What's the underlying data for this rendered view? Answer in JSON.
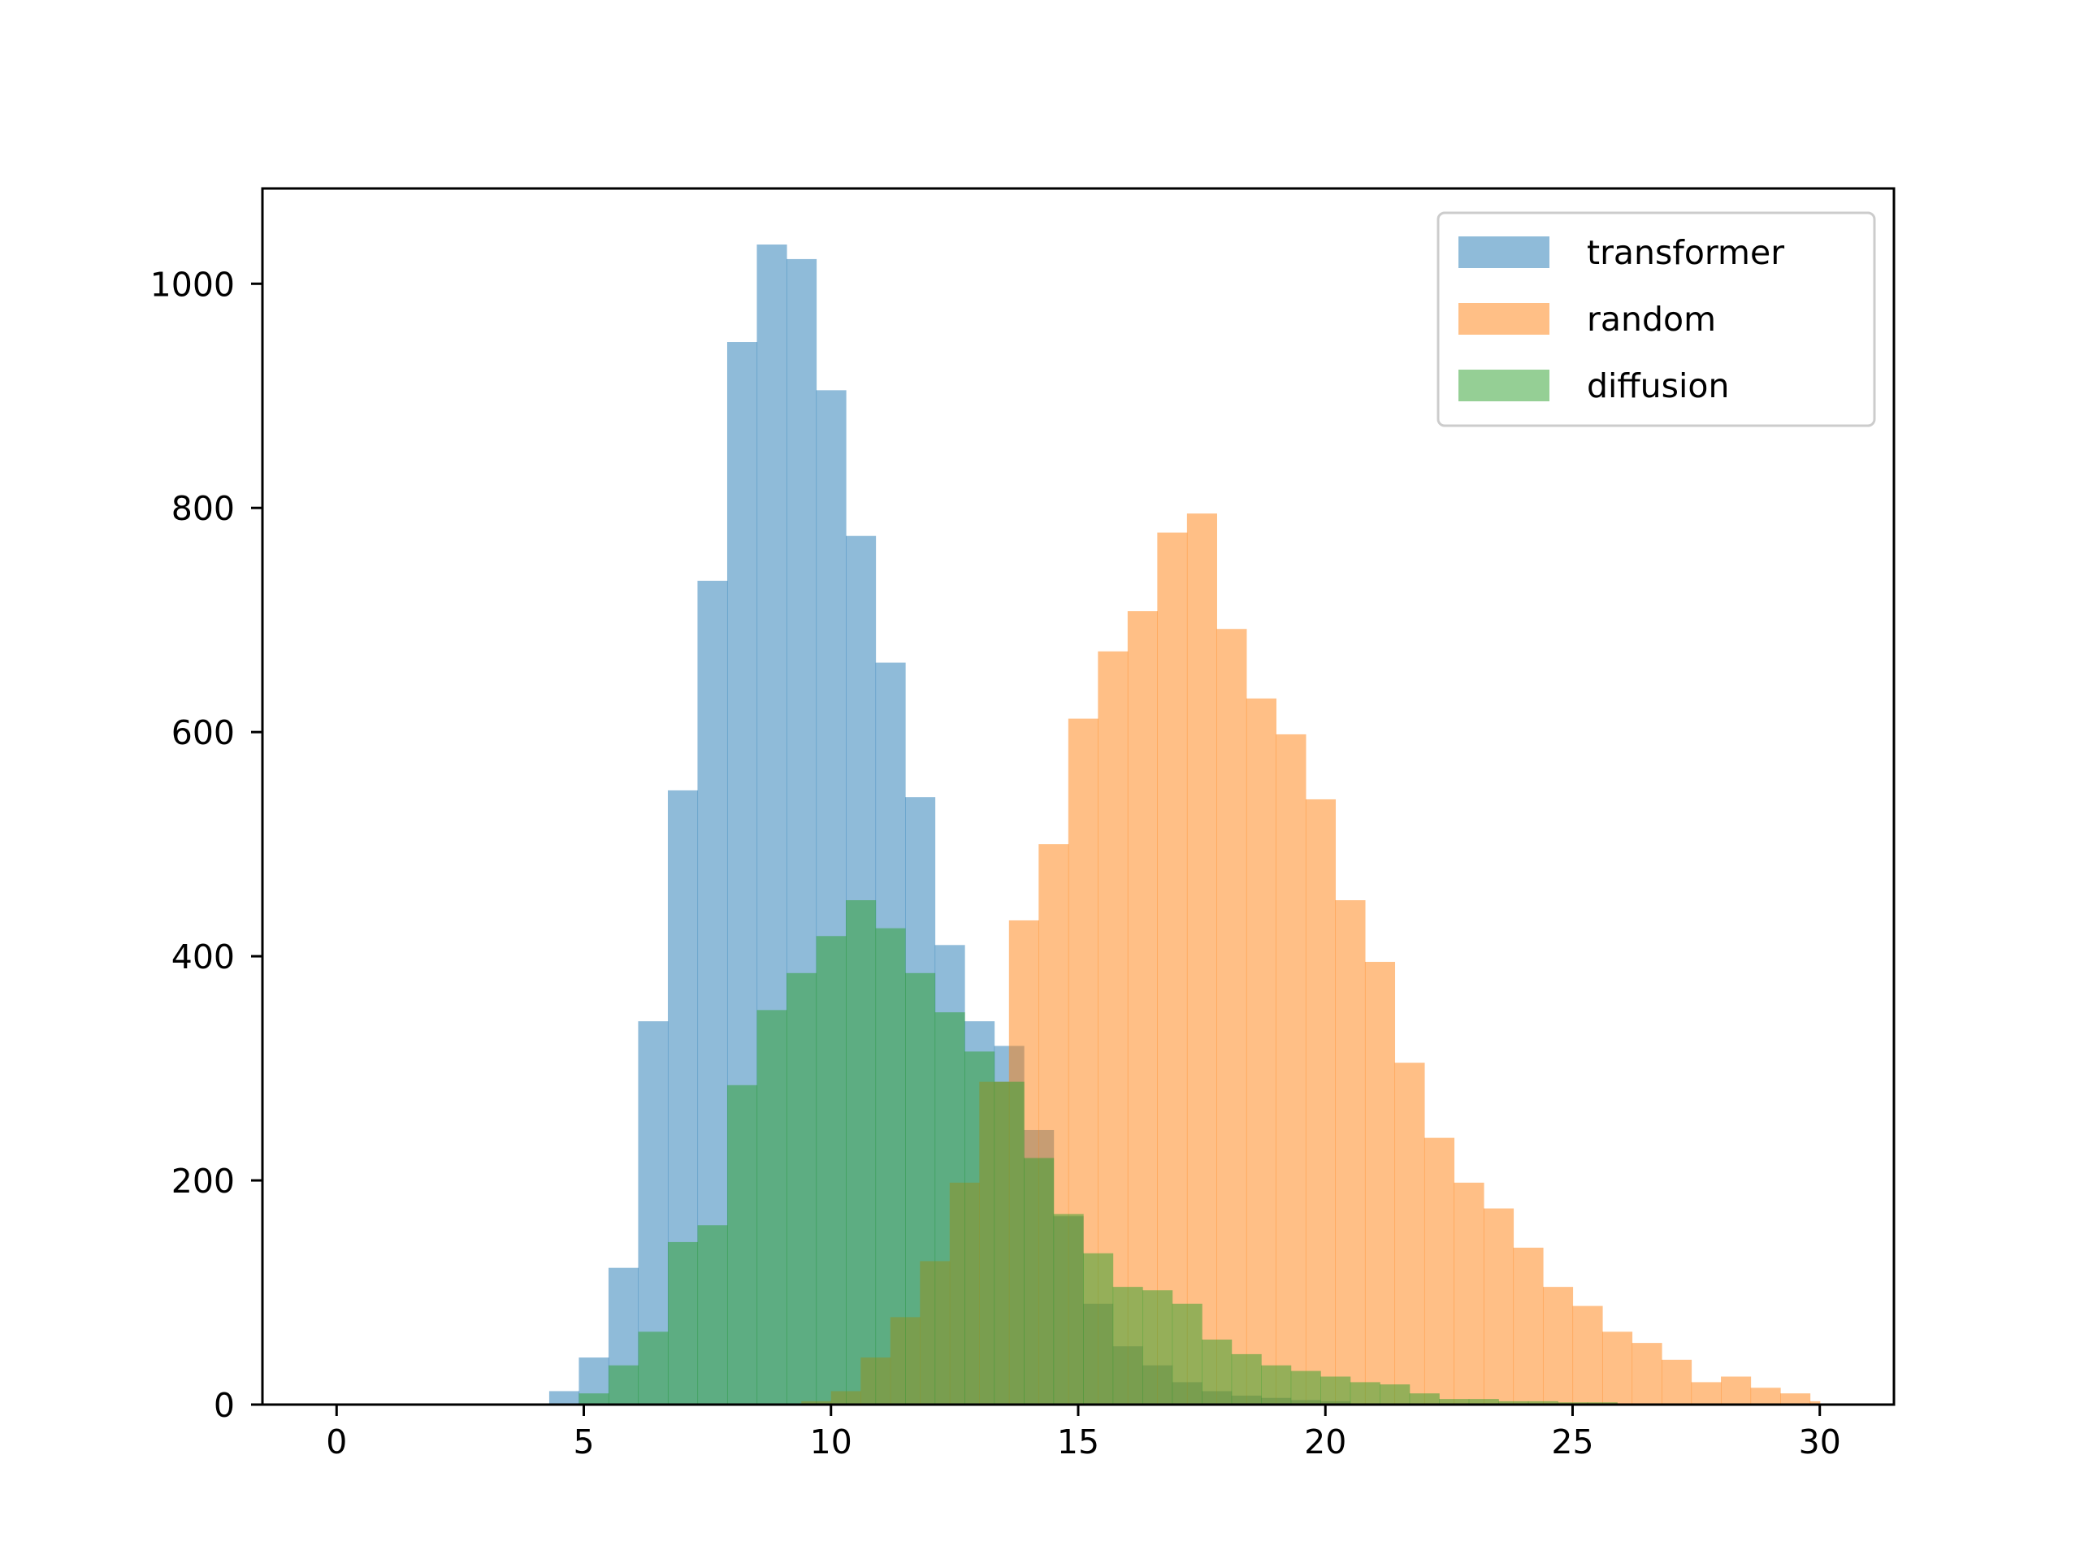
{
  "chart_data": {
    "type": "bar",
    "title": "",
    "xlabel": "",
    "ylabel": "",
    "xlim": [
      -1.5,
      31.5
    ],
    "ylim": [
      0,
      1085
    ],
    "bin_width": 0.6,
    "x_ticks": [
      0,
      5,
      10,
      15,
      20,
      25,
      30
    ],
    "y_ticks": [
      0,
      200,
      400,
      600,
      800,
      1000
    ],
    "x_tick_labels": [
      "0",
      "5",
      "10",
      "15",
      "20",
      "25",
      "30"
    ],
    "y_tick_labels": [
      "0",
      "200",
      "400",
      "600",
      "800",
      "1000"
    ],
    "grid": false,
    "legend_position": "top-right",
    "series": [
      {
        "name": "transformer",
        "color": "#1f77b4",
        "opacity": 0.5,
        "bin_edges": [
          4.3,
          4.9,
          5.5,
          6.1,
          6.7,
          7.3,
          7.9,
          8.5,
          9.1,
          9.7,
          10.3,
          10.9,
          11.5,
          12.1,
          12.7,
          13.3,
          13.9,
          14.5,
          15.1,
          15.7,
          16.3,
          16.9,
          17.5,
          18.1,
          18.7,
          19.3,
          19.9,
          20.5
        ],
        "values": [
          12,
          42,
          122,
          342,
          548,
          735,
          948,
          1035,
          1022,
          905,
          775,
          662,
          542,
          410,
          342,
          320,
          245,
          168,
          90,
          52,
          35,
          20,
          12,
          8,
          6,
          4,
          3
        ]
      },
      {
        "name": "random",
        "color": "#ff7f0e",
        "opacity": 0.5,
        "bin_edges": [
          9.4,
          10.0,
          10.6,
          11.2,
          11.8,
          12.4,
          13.0,
          13.6,
          14.2,
          14.8,
          15.4,
          16.0,
          16.6,
          17.2,
          17.8,
          18.4,
          19.0,
          19.6,
          20.2,
          20.8,
          21.4,
          22.0,
          22.6,
          23.2,
          23.8,
          24.4,
          25.0,
          25.6,
          26.2,
          26.8,
          27.4,
          28.0,
          28.6,
          29.2,
          29.8,
          30.0
        ],
        "values": [
          3,
          12,
          42,
          78,
          128,
          198,
          288,
          432,
          500,
          612,
          672,
          708,
          778,
          795,
          692,
          630,
          598,
          540,
          450,
          395,
          305,
          238,
          198,
          175,
          140,
          105,
          88,
          65,
          55,
          40,
          20,
          25,
          15,
          10,
          3
        ]
      },
      {
        "name": "diffusion",
        "color": "#2ca02c",
        "opacity": 0.5,
        "bin_edges": [
          4.9,
          5.5,
          6.1,
          6.7,
          7.3,
          7.9,
          8.5,
          9.1,
          9.7,
          10.3,
          10.9,
          11.5,
          12.1,
          12.7,
          13.3,
          13.9,
          14.5,
          15.1,
          15.7,
          16.3,
          16.9,
          17.5,
          18.1,
          18.7,
          19.3,
          19.9,
          20.5,
          21.1,
          21.7,
          22.3,
          22.9,
          23.5,
          24.1,
          24.7,
          25.3,
          25.9,
          26.5,
          27.1
        ],
        "values": [
          10,
          35,
          65,
          145,
          160,
          285,
          352,
          385,
          418,
          450,
          425,
          385,
          350,
          315,
          288,
          220,
          170,
          135,
          105,
          102,
          90,
          58,
          45,
          35,
          30,
          25,
          20,
          18,
          10,
          5,
          5,
          3,
          3,
          2,
          2,
          1,
          1
        ]
      }
    ]
  }
}
